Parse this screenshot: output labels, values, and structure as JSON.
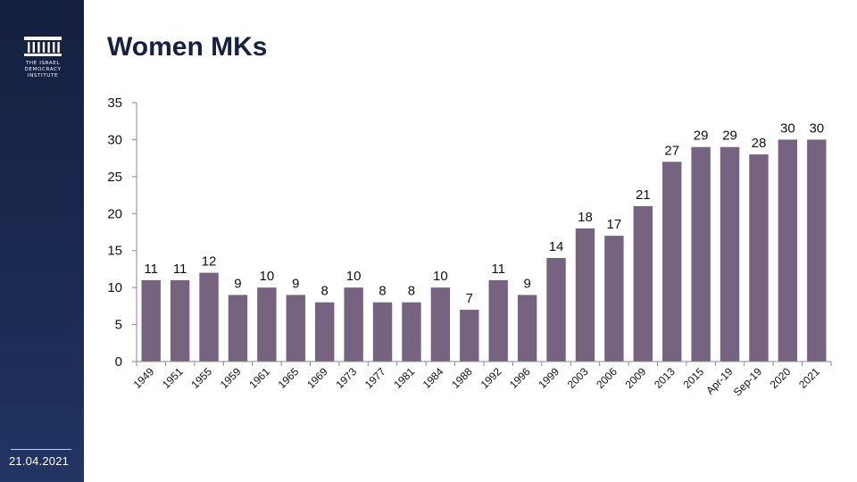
{
  "title": "Women MKs",
  "logo": {
    "text": "THE ISRAEL\nDEMOCRACY\nINSTITUTE",
    "icon": "institute-pillars-icon"
  },
  "date": "21.04.2021",
  "colors": {
    "bar": "#76637f",
    "sidebar": "#1b2a52",
    "title": "#142142"
  },
  "chart_data": {
    "type": "bar",
    "title": "Women MKs",
    "xlabel": "",
    "ylabel": "",
    "categories": [
      "1949",
      "1951",
      "1955",
      "1959",
      "1961",
      "1965",
      "1969",
      "1973",
      "1977",
      "1981",
      "1984",
      "1988",
      "1992",
      "1996",
      "1999",
      "2003",
      "2006",
      "2009",
      "2013",
      "2015",
      "Apr-19",
      "Sep-19",
      "2020",
      "2021"
    ],
    "values": [
      11,
      11,
      12,
      9,
      10,
      9,
      8,
      10,
      8,
      8,
      10,
      7,
      11,
      9,
      14,
      18,
      17,
      21,
      27,
      29,
      29,
      28,
      30,
      30
    ],
    "ylim": [
      0,
      35
    ],
    "yticks": [
      0,
      5,
      10,
      15,
      20,
      25,
      30,
      35
    ],
    "grid": false,
    "legend": "none",
    "data_labels": true
  }
}
